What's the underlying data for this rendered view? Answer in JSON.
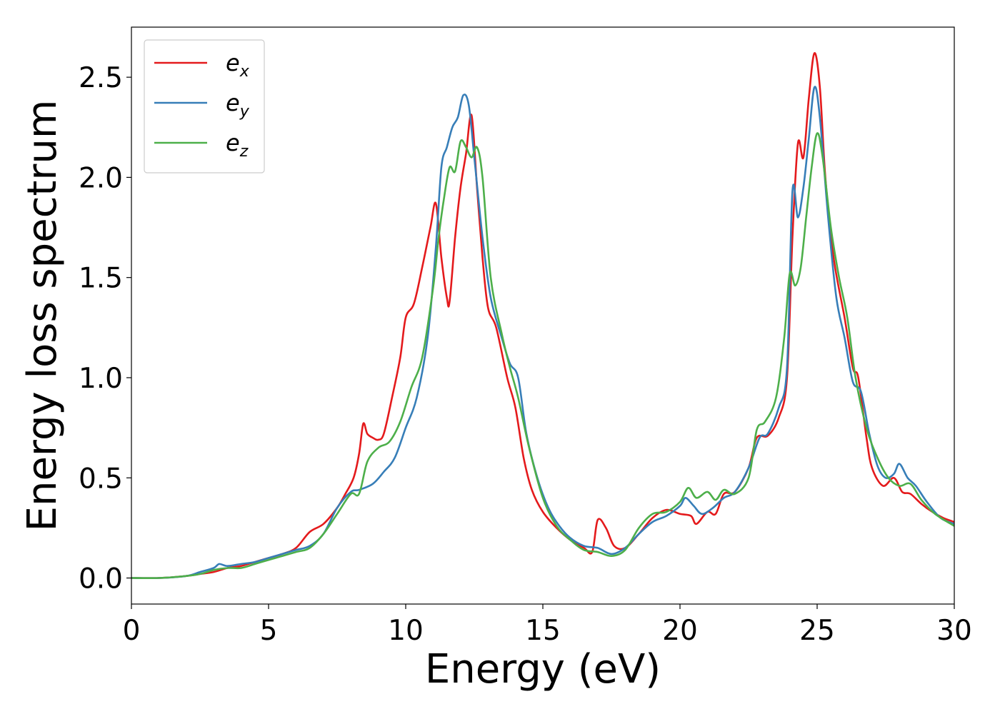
{
  "chart_data": {
    "type": "line",
    "title": "",
    "xlabel": "Energy (eV)",
    "ylabel": "Energy loss spectrum",
    "xlim": [
      0,
      30
    ],
    "ylim": [
      -0.13,
      2.75
    ],
    "xticks": [
      0,
      5,
      10,
      15,
      20,
      25,
      30
    ],
    "xtick_labels": [
      "0",
      "5",
      "10",
      "15",
      "20",
      "25",
      "30"
    ],
    "yticks": [
      0.0,
      0.5,
      1.0,
      1.5,
      2.0,
      2.5
    ],
    "ytick_labels": [
      "0.0",
      "0.5",
      "1.0",
      "1.5",
      "2.0",
      "2.5"
    ],
    "grid": false,
    "legend_position": "top-left",
    "series": [
      {
        "name": "e_x",
        "legend_base": "e",
        "legend_sub": "x",
        "color": "#e41a1c",
        "points": [
          [
            0,
            0.0
          ],
          [
            1,
            0.0
          ],
          [
            2,
            0.01
          ],
          [
            2.5,
            0.02
          ],
          [
            3,
            0.03
          ],
          [
            3.5,
            0.05
          ],
          [
            4,
            0.06
          ],
          [
            4.5,
            0.08
          ],
          [
            5,
            0.1
          ],
          [
            5.5,
            0.12
          ],
          [
            6,
            0.15
          ],
          [
            6.5,
            0.23
          ],
          [
            7,
            0.27
          ],
          [
            7.5,
            0.35
          ],
          [
            7.8,
            0.42
          ],
          [
            8.1,
            0.5
          ],
          [
            8.3,
            0.62
          ],
          [
            8.45,
            0.77
          ],
          [
            8.6,
            0.72
          ],
          [
            8.8,
            0.7
          ],
          [
            9.0,
            0.69
          ],
          [
            9.2,
            0.72
          ],
          [
            9.5,
            0.9
          ],
          [
            9.8,
            1.1
          ],
          [
            10.0,
            1.3
          ],
          [
            10.3,
            1.37
          ],
          [
            10.6,
            1.55
          ],
          [
            10.9,
            1.75
          ],
          [
            11.1,
            1.87
          ],
          [
            11.3,
            1.6
          ],
          [
            11.5,
            1.4
          ],
          [
            11.6,
            1.38
          ],
          [
            11.8,
            1.7
          ],
          [
            12.0,
            1.95
          ],
          [
            12.2,
            2.12
          ],
          [
            12.4,
            2.31
          ],
          [
            12.6,
            1.95
          ],
          [
            12.8,
            1.6
          ],
          [
            13.0,
            1.35
          ],
          [
            13.3,
            1.25
          ],
          [
            13.7,
            1.0
          ],
          [
            14.0,
            0.85
          ],
          [
            14.3,
            0.6
          ],
          [
            14.6,
            0.44
          ],
          [
            15.0,
            0.33
          ],
          [
            15.5,
            0.25
          ],
          [
            16.0,
            0.19
          ],
          [
            16.5,
            0.15
          ],
          [
            16.8,
            0.13
          ],
          [
            17.0,
            0.29
          ],
          [
            17.3,
            0.25
          ],
          [
            17.6,
            0.16
          ],
          [
            18.0,
            0.15
          ],
          [
            18.5,
            0.22
          ],
          [
            19.0,
            0.3
          ],
          [
            19.5,
            0.34
          ],
          [
            20.0,
            0.32
          ],
          [
            20.4,
            0.31
          ],
          [
            20.6,
            0.27
          ],
          [
            21.0,
            0.33
          ],
          [
            21.3,
            0.32
          ],
          [
            21.6,
            0.42
          ],
          [
            22.0,
            0.43
          ],
          [
            22.5,
            0.55
          ],
          [
            22.8,
            0.7
          ],
          [
            23.2,
            0.71
          ],
          [
            23.6,
            0.8
          ],
          [
            23.9,
            1.0
          ],
          [
            24.1,
            1.7
          ],
          [
            24.3,
            2.17
          ],
          [
            24.5,
            2.1
          ],
          [
            24.7,
            2.4
          ],
          [
            24.9,
            2.62
          ],
          [
            25.1,
            2.45
          ],
          [
            25.3,
            2.0
          ],
          [
            25.6,
            1.6
          ],
          [
            26.0,
            1.3
          ],
          [
            26.3,
            1.05
          ],
          [
            26.5,
            1.0
          ],
          [
            26.8,
            0.7
          ],
          [
            27.0,
            0.55
          ],
          [
            27.4,
            0.46
          ],
          [
            27.8,
            0.5
          ],
          [
            28.1,
            0.43
          ],
          [
            28.4,
            0.42
          ],
          [
            28.8,
            0.37
          ],
          [
            29.2,
            0.33
          ],
          [
            29.6,
            0.3
          ],
          [
            30,
            0.28
          ]
        ]
      },
      {
        "name": "e_y",
        "legend_base": "e",
        "legend_sub": "y",
        "color": "#377eb8",
        "points": [
          [
            0,
            0.0
          ],
          [
            1,
            0.0
          ],
          [
            2,
            0.01
          ],
          [
            2.5,
            0.03
          ],
          [
            3,
            0.05
          ],
          [
            3.2,
            0.07
          ],
          [
            3.5,
            0.06
          ],
          [
            4,
            0.07
          ],
          [
            4.5,
            0.08
          ],
          [
            5,
            0.1
          ],
          [
            5.5,
            0.12
          ],
          [
            6,
            0.14
          ],
          [
            6.5,
            0.16
          ],
          [
            7,
            0.22
          ],
          [
            7.5,
            0.35
          ],
          [
            8.0,
            0.43
          ],
          [
            8.3,
            0.44
          ],
          [
            8.8,
            0.47
          ],
          [
            9.2,
            0.53
          ],
          [
            9.6,
            0.6
          ],
          [
            10.0,
            0.75
          ],
          [
            10.4,
            0.9
          ],
          [
            10.8,
            1.2
          ],
          [
            11.1,
            1.65
          ],
          [
            11.3,
            2.05
          ],
          [
            11.5,
            2.15
          ],
          [
            11.7,
            2.25
          ],
          [
            11.9,
            2.3
          ],
          [
            12.1,
            2.41
          ],
          [
            12.3,
            2.36
          ],
          [
            12.5,
            2.1
          ],
          [
            12.8,
            1.7
          ],
          [
            13.1,
            1.4
          ],
          [
            13.5,
            1.2
          ],
          [
            13.8,
            1.07
          ],
          [
            14.1,
            1.0
          ],
          [
            14.4,
            0.72
          ],
          [
            14.8,
            0.5
          ],
          [
            15.2,
            0.35
          ],
          [
            15.6,
            0.26
          ],
          [
            16.0,
            0.2
          ],
          [
            16.5,
            0.16
          ],
          [
            17.0,
            0.15
          ],
          [
            17.5,
            0.12
          ],
          [
            18.0,
            0.15
          ],
          [
            18.5,
            0.22
          ],
          [
            19.0,
            0.28
          ],
          [
            19.5,
            0.31
          ],
          [
            20.0,
            0.36
          ],
          [
            20.2,
            0.4
          ],
          [
            20.5,
            0.36
          ],
          [
            20.8,
            0.32
          ],
          [
            21.2,
            0.35
          ],
          [
            21.6,
            0.4
          ],
          [
            22.0,
            0.43
          ],
          [
            22.5,
            0.55
          ],
          [
            22.9,
            0.7
          ],
          [
            23.2,
            0.72
          ],
          [
            23.6,
            0.85
          ],
          [
            23.9,
            1.05
          ],
          [
            24.1,
            1.93
          ],
          [
            24.3,
            1.8
          ],
          [
            24.5,
            1.95
          ],
          [
            24.7,
            2.2
          ],
          [
            24.9,
            2.45
          ],
          [
            25.1,
            2.3
          ],
          [
            25.4,
            1.8
          ],
          [
            25.7,
            1.4
          ],
          [
            26.0,
            1.2
          ],
          [
            26.3,
            0.98
          ],
          [
            26.6,
            0.93
          ],
          [
            26.9,
            0.72
          ],
          [
            27.2,
            0.56
          ],
          [
            27.5,
            0.5
          ],
          [
            27.8,
            0.52
          ],
          [
            28.0,
            0.57
          ],
          [
            28.3,
            0.5
          ],
          [
            28.6,
            0.46
          ],
          [
            29.0,
            0.38
          ],
          [
            29.5,
            0.3
          ],
          [
            30,
            0.27
          ]
        ]
      },
      {
        "name": "e_z",
        "legend_base": "e",
        "legend_sub": "z",
        "color": "#4daf4a",
        "points": [
          [
            0,
            0.0
          ],
          [
            1,
            0.0
          ],
          [
            2,
            0.01
          ],
          [
            2.5,
            0.02
          ],
          [
            3,
            0.04
          ],
          [
            3.5,
            0.05
          ],
          [
            4,
            0.05
          ],
          [
            4.5,
            0.07
          ],
          [
            5,
            0.09
          ],
          [
            5.5,
            0.11
          ],
          [
            6,
            0.13
          ],
          [
            6.5,
            0.15
          ],
          [
            7,
            0.22
          ],
          [
            7.5,
            0.32
          ],
          [
            8.0,
            0.42
          ],
          [
            8.3,
            0.42
          ],
          [
            8.6,
            0.58
          ],
          [
            9.0,
            0.65
          ],
          [
            9.4,
            0.68
          ],
          [
            9.8,
            0.78
          ],
          [
            10.2,
            0.95
          ],
          [
            10.6,
            1.1
          ],
          [
            11.0,
            1.45
          ],
          [
            11.2,
            1.7
          ],
          [
            11.4,
            1.9
          ],
          [
            11.6,
            2.05
          ],
          [
            11.8,
            2.03
          ],
          [
            12.0,
            2.18
          ],
          [
            12.2,
            2.15
          ],
          [
            12.4,
            2.1
          ],
          [
            12.6,
            2.15
          ],
          [
            12.8,
            2.0
          ],
          [
            13.1,
            1.5
          ],
          [
            13.5,
            1.22
          ],
          [
            13.8,
            1.05
          ],
          [
            14.1,
            0.9
          ],
          [
            14.5,
            0.65
          ],
          [
            15.0,
            0.4
          ],
          [
            15.5,
            0.26
          ],
          [
            16.0,
            0.19
          ],
          [
            16.5,
            0.14
          ],
          [
            17.0,
            0.13
          ],
          [
            17.5,
            0.11
          ],
          [
            18.0,
            0.14
          ],
          [
            18.5,
            0.25
          ],
          [
            19.0,
            0.32
          ],
          [
            19.5,
            0.33
          ],
          [
            20.0,
            0.38
          ],
          [
            20.3,
            0.45
          ],
          [
            20.6,
            0.4
          ],
          [
            21.0,
            0.43
          ],
          [
            21.3,
            0.39
          ],
          [
            21.6,
            0.44
          ],
          [
            22.0,
            0.42
          ],
          [
            22.5,
            0.5
          ],
          [
            22.8,
            0.74
          ],
          [
            23.1,
            0.78
          ],
          [
            23.5,
            0.9
          ],
          [
            23.8,
            1.2
          ],
          [
            24.0,
            1.52
          ],
          [
            24.2,
            1.46
          ],
          [
            24.4,
            1.55
          ],
          [
            24.6,
            1.8
          ],
          [
            24.8,
            2.05
          ],
          [
            25.0,
            2.22
          ],
          [
            25.2,
            2.1
          ],
          [
            25.5,
            1.75
          ],
          [
            25.8,
            1.5
          ],
          [
            26.1,
            1.3
          ],
          [
            26.4,
            1.0
          ],
          [
            26.8,
            0.75
          ],
          [
            27.2,
            0.6
          ],
          [
            27.6,
            0.5
          ],
          [
            28.0,
            0.46
          ],
          [
            28.4,
            0.47
          ],
          [
            28.8,
            0.39
          ],
          [
            29.3,
            0.32
          ],
          [
            30,
            0.26
          ]
        ]
      }
    ]
  }
}
